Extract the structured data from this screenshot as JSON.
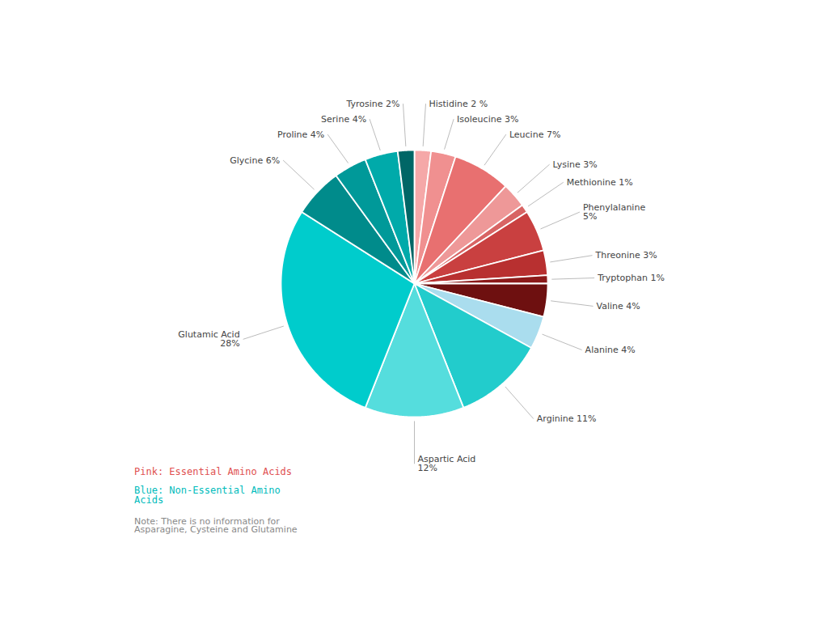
{
  "chart_data": {
    "type": "pie",
    "categories": [
      "Histidine 2 %",
      "Isoleucine 3%",
      "Leucine 7%",
      "Lysine 3%",
      "Methionine 1%",
      "Phenylalanine\n5%",
      "Threonine 3%",
      "Tryptophan 1%",
      "Valine 4%",
      "Alanine 4%",
      "Arginine 11%",
      "Aspartic Acid\n12%",
      "Glutamic Acid\n28%",
      "Glycine 6%",
      "Proline 4%",
      "Serine 4%",
      "Tyrosine 2%"
    ],
    "values": [
      2,
      3,
      7,
      3,
      1,
      5,
      3,
      1,
      4,
      4,
      11,
      12,
      28,
      6,
      4,
      4,
      2
    ],
    "colors": [
      "#F5A8A8",
      "#F09090",
      "#E87070",
      "#EE9898",
      "#D86464",
      "#C94040",
      "#B83030",
      "#8C1A1A",
      "#6E1010",
      "#AADDEE",
      "#22CCCC",
      "#55DDDD",
      "#00CCCC",
      "#008B8B",
      "#009999",
      "#00AAAA",
      "#006666"
    ],
    "annotations": [
      {
        "text": "Pink: Essential Amino Acids",
        "color": "#E05050"
      },
      {
        "text": "Blue: Non-Essential Amino\nAcids",
        "color": "#00BBBB"
      },
      {
        "text": "Note: There is no information for\nAsparagine, Cysteine and Glutamine",
        "color": "#888888"
      }
    ]
  }
}
